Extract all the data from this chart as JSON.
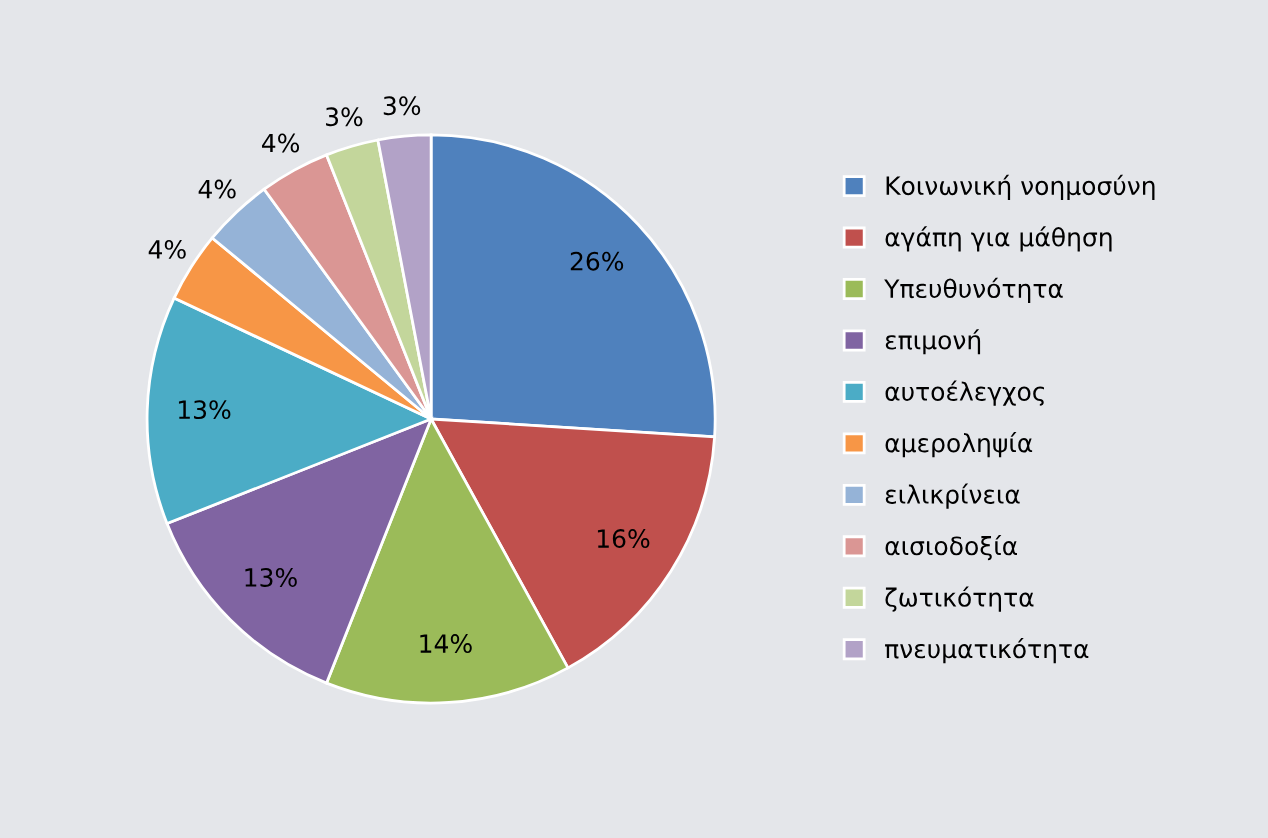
{
  "chart_data": {
    "type": "pie",
    "categories": [
      "Κοινωνική νοημοσύνη",
      "αγάπη για μάθηση",
      "Υπευθυνότητα",
      "επιμονή",
      "αυτοέλεγχος",
      "αμεροληψία",
      "ειλικρίνεια",
      "αισιοδοξία",
      "ζωτικότητα",
      "πνευματικότητα"
    ],
    "values": [
      26,
      16,
      14,
      13,
      13,
      4,
      4,
      4,
      3,
      3
    ],
    "value_labels": [
      "26%",
      "16%",
      "14%",
      "13%",
      "13%",
      "4%",
      "4%",
      "4%",
      "3%",
      "3%"
    ],
    "colors": [
      "#4f81bd",
      "#c0504d",
      "#9bbb59",
      "#8064a2",
      "#4bacc6",
      "#f79646",
      "#95b3d7",
      "#da9694",
      "#c3d69b",
      "#b2a2c7"
    ],
    "legend": "right"
  }
}
